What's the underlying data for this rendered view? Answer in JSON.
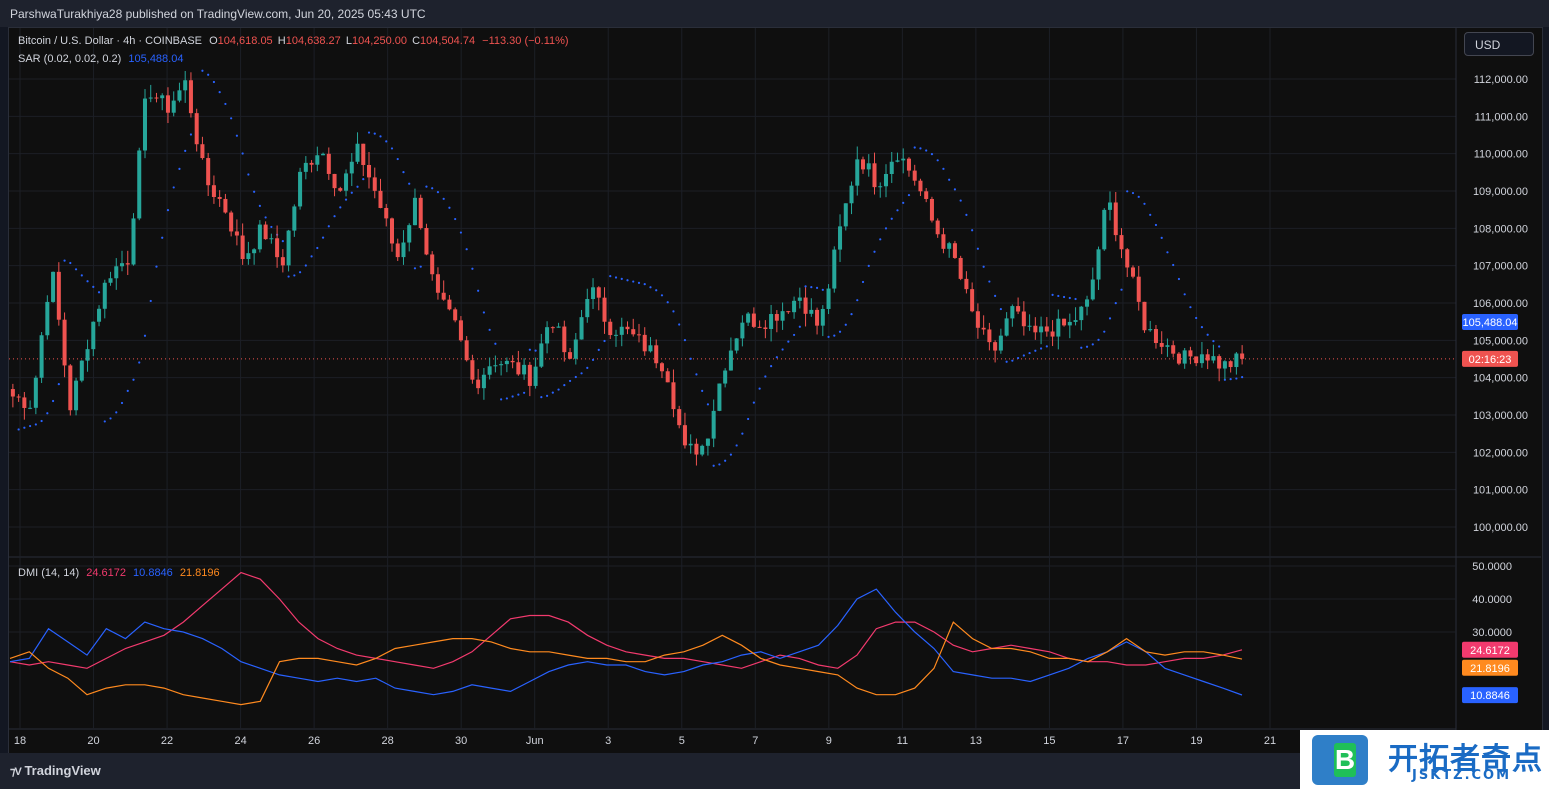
{
  "header": {
    "published": "ParshwaTurakhiya28 published on TradingView.com, Jun 20, 2025 05:43 UTC"
  },
  "legend": {
    "symbol": "Bitcoin / U.S. Dollar · 4h · COINBASE",
    "o_label": "O",
    "o": "104,618.05",
    "h_label": "H",
    "h": "104,638.27",
    "l_label": "L",
    "l": "104,250.00",
    "c_label": "C",
    "c": "104,504.74",
    "change": "−113.30 (−0.11%)",
    "sar_label": "SAR (0.02, 0.02, 0.2)",
    "sar_value": "105,488.04",
    "dmi_label": "DMI (14, 14)",
    "dmi_plus": "24.6172",
    "dmi_minus": "10.8846",
    "adx": "21.8196"
  },
  "currency_button": "USD",
  "footer": {
    "brand": "TradingView"
  },
  "watermark": {
    "cn": "开拓者奇点",
    "en": "JSKTZ.COM",
    "logo_letter": "B"
  },
  "colors": {
    "up": "#26a69a",
    "down": "#ef5350",
    "sar": "#2962ff",
    "dmi_plus": "#f23a6e",
    "dmi_minus": "#2962ff",
    "adx": "#ff8a1f"
  },
  "chart_data": [
    {
      "type": "candlestick",
      "title": "Bitcoin / U.S. Dollar · 4h · COINBASE",
      "x_ticks": [
        "18",
        "20",
        "22",
        "24",
        "26",
        "28",
        "30",
        "Jun",
        "3",
        "5",
        "7",
        "9",
        "11",
        "13",
        "15",
        "17",
        "19",
        "21"
      ],
      "y_ticks": [
        "112,000.00",
        "111,000.00",
        "110,000.00",
        "109,000.00",
        "108,000.00",
        "107,000.00",
        "106,000.00",
        "105,000.00",
        "104,000.00",
        "103,000.00",
        "102,000.00",
        "101,000.00",
        "100,000.00"
      ],
      "ylim": [
        99600,
        112500
      ],
      "last_price_label": "02:16:23",
      "last_price": 104504.74,
      "sar_label_value": "105,488.04",
      "price_path": [
        [
          "18",
          103500
        ],
        [
          "19",
          103300
        ],
        [
          "19.5",
          107000
        ],
        [
          "20",
          103200
        ],
        [
          "20.5",
          105200
        ],
        [
          "21",
          106800
        ],
        [
          "21.5",
          107200
        ],
        [
          "22",
          111800
        ],
        [
          "22.5",
          111200
        ],
        [
          "23",
          111900
        ],
        [
          "23.5",
          109300
        ],
        [
          "24",
          108600
        ],
        [
          "24.5",
          107200
        ],
        [
          "25",
          108000
        ],
        [
          "25.5",
          107000
        ],
        [
          "26",
          109500
        ],
        [
          "26.5",
          110200
        ],
        [
          "27",
          109000
        ],
        [
          "27.5",
          110100
        ],
        [
          "28",
          108800
        ],
        [
          "28.5",
          107200
        ],
        [
          "29",
          108800
        ],
        [
          "29.5",
          106200
        ],
        [
          "30",
          105400
        ],
        [
          "30.5",
          103800
        ],
        [
          "31",
          104500
        ],
        [
          "Jun",
          104300
        ],
        [
          "1.5",
          104000
        ],
        [
          "2",
          105700
        ],
        [
          "2.5",
          104300
        ],
        [
          "3",
          106500
        ],
        [
          "3.5",
          105400
        ],
        [
          "4",
          105200
        ],
        [
          "4.5",
          104800
        ],
        [
          "5",
          104300
        ],
        [
          "5.5",
          102000
        ],
        [
          "6",
          102200
        ],
        [
          "6.5",
          104300
        ],
        [
          "7",
          105600
        ],
        [
          "7.5",
          105500
        ],
        [
          "8",
          105800
        ],
        [
          "8.5",
          106200
        ],
        [
          "9",
          105300
        ],
        [
          "9.5",
          107800
        ],
        [
          "10",
          110000
        ],
        [
          "10.5",
          109200
        ],
        [
          "11",
          110100
        ],
        [
          "11.5",
          109300
        ],
        [
          "12",
          108000
        ],
        [
          "12.5",
          107200
        ],
        [
          "13",
          105600
        ],
        [
          "13.5",
          104600
        ],
        [
          "14",
          105800
        ],
        [
          "14.5",
          105100
        ],
        [
          "15",
          105300
        ],
        [
          "15.5",
          105400
        ],
        [
          "16",
          106000
        ],
        [
          "16.5",
          108800
        ],
        [
          "17",
          107000
        ],
        [
          "17.5",
          105300
        ],
        [
          "18",
          104900
        ],
        [
          "18.5",
          104500
        ],
        [
          "19",
          104700
        ],
        [
          "19.5",
          104300
        ],
        [
          "20",
          104505
        ]
      ]
    },
    {
      "type": "line",
      "title": "DMI (14, 14)",
      "y_ticks": [
        "50.0000",
        "40.0000",
        "30.0000"
      ],
      "ylim": [
        2,
        51
      ],
      "series": [
        {
          "name": "+DI",
          "last": "24.6172",
          "values": [
            21,
            20,
            21,
            20,
            19,
            22,
            25,
            27,
            29,
            33,
            38,
            43,
            48,
            46,
            40,
            33,
            28,
            25,
            23,
            22,
            21,
            20,
            19,
            21,
            24,
            29,
            34,
            35,
            35,
            33,
            29,
            26,
            24,
            23,
            22,
            22,
            21,
            20,
            19,
            21,
            23,
            22,
            20,
            19,
            23,
            31,
            33,
            33,
            30,
            26,
            24,
            25,
            26,
            25,
            24,
            22,
            21,
            21,
            20,
            20,
            21,
            22,
            22,
            23,
            24.6
          ]
        },
        {
          "name": "-DI",
          "last": "10.8846",
          "values": [
            21,
            22,
            31,
            27,
            23,
            31,
            28,
            33,
            31,
            30,
            28,
            25,
            21,
            19,
            17,
            16,
            15,
            16,
            15,
            16,
            13,
            12,
            11,
            12,
            14,
            13,
            12,
            15,
            18,
            20,
            21,
            20,
            20,
            18,
            17,
            18,
            20,
            21,
            23,
            24,
            22,
            24,
            26,
            32,
            40,
            43,
            36,
            30,
            25,
            18,
            17,
            16,
            16,
            15,
            17,
            19,
            22,
            24,
            27,
            24,
            19,
            17,
            15,
            13,
            10.9
          ]
        },
        {
          "name": "ADX",
          "last": "21.8196",
          "values": [
            22,
            24,
            19,
            16,
            11,
            13,
            14,
            14,
            13,
            11,
            10,
            9,
            8,
            9,
            21,
            22,
            22,
            21,
            20,
            22,
            25,
            26,
            27,
            28,
            28,
            27,
            25,
            24,
            24,
            23,
            22,
            22,
            21,
            21,
            23,
            24,
            26,
            29,
            26,
            22,
            20,
            19,
            18,
            17,
            13,
            11,
            11,
            13,
            19,
            33,
            28,
            25,
            25,
            24,
            22,
            22,
            21,
            24,
            28,
            24,
            23,
            24,
            24,
            23,
            21.8
          ]
        }
      ]
    }
  ]
}
